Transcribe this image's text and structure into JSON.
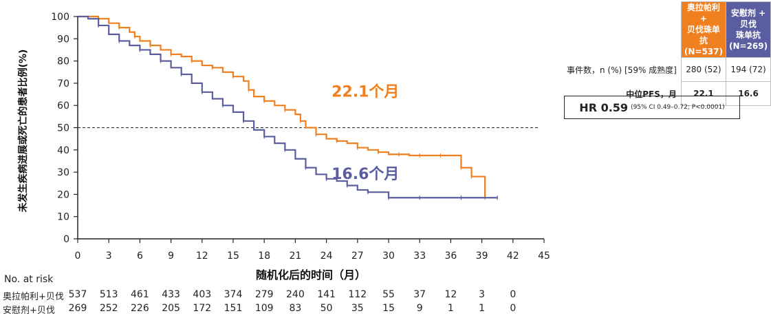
{
  "chart_data": {
    "type": "line",
    "xlabel": "随机化后的时间（月）",
    "ylabel": "未发生疾病进展或死亡的患者比例(%)",
    "xlim": [
      0,
      45
    ],
    "ylim": [
      0,
      100
    ],
    "x_ticks": [
      0,
      3,
      6,
      9,
      12,
      15,
      18,
      21,
      24,
      27,
      30,
      33,
      36,
      39,
      42,
      45
    ],
    "y_ticks": [
      0,
      10,
      20,
      30,
      40,
      50,
      60,
      70,
      80,
      90,
      100
    ],
    "reference_line": {
      "y": 50,
      "style": "dashed"
    },
    "series": [
      {
        "name": "奥拉帕利+贝伐珠单抗",
        "color": "#f07f1f",
        "x": [
          0,
          1,
          2,
          3,
          4,
          5,
          5.5,
          6,
          7,
          8,
          9,
          10,
          11,
          12,
          13,
          14,
          15,
          16,
          16.5,
          17,
          18,
          19,
          20,
          21,
          21.5,
          22,
          23,
          24,
          25,
          26,
          27,
          28,
          29,
          30,
          31,
          32,
          33,
          34,
          35,
          36,
          37,
          37.5,
          38,
          39,
          39.3
        ],
        "values": [
          100,
          100,
          99,
          97,
          95,
          93,
          91,
          89,
          87,
          85,
          83,
          82,
          80,
          78,
          77,
          75,
          73,
          71,
          67,
          64,
          62,
          60,
          58,
          56,
          53,
          50,
          47,
          45,
          44,
          43,
          41,
          40,
          39,
          38,
          38,
          37.5,
          37.5,
          37.5,
          37.5,
          37.5,
          32,
          32,
          28,
          28,
          18.5
        ]
      },
      {
        "name": "安慰剂+贝伐珠单抗",
        "color": "#5a5d9f",
        "x": [
          0,
          1,
          2,
          3,
          4,
          5,
          6,
          7,
          8,
          9,
          10,
          11,
          12,
          13,
          14,
          15,
          16,
          17,
          18,
          19,
          20,
          21,
          22,
          23,
          24,
          25,
          26,
          27,
          28,
          29,
          30,
          31,
          33,
          35,
          37,
          39,
          40.5
        ],
        "values": [
          100,
          99,
          96,
          92,
          89,
          87,
          85,
          83,
          80,
          77,
          74,
          70,
          66,
          63,
          60,
          57,
          53,
          49,
          46,
          43,
          40,
          36,
          32,
          29,
          27,
          26,
          24,
          22,
          21,
          21,
          18.5,
          18.5,
          18.5,
          18.5,
          18.5,
          18.5,
          18.5
        ]
      }
    ],
    "annotations": [
      {
        "text": "22.1个月",
        "x": 24.5,
        "y": 64,
        "color": "#f07f1f"
      },
      {
        "text": "16.6个月",
        "x": 24.5,
        "y": 27,
        "color": "#5a5d9f"
      }
    ]
  },
  "legend_table": {
    "arm1_header": [
      "奥拉帕利 +",
      "贝伐珠单抗",
      "(N=537)"
    ],
    "arm2_header": [
      "安慰剂 + 贝伐",
      "珠单抗",
      "(N=269)"
    ],
    "events_label": "事件数，n (%) [59% 成熟度]",
    "events_arm1": "280 (52)",
    "events_arm2": "194 (72)",
    "median_label": "中位PFS，月",
    "median_arm1": "22.1",
    "median_arm2": "16.6",
    "hr_main": "HR 0.59",
    "hr_detail": "(95% CI 0.49–0.72; P<0.0001)"
  },
  "risk_table": {
    "title": "No. at risk",
    "arm1_label": "奥拉帕利+贝伐",
    "arm2_label": "安慰剂+贝伐",
    "times": [
      0,
      3,
      6,
      9,
      12,
      15,
      18,
      21,
      24,
      27,
      30,
      33,
      36,
      39,
      42
    ],
    "arm1": [
      "537",
      "513",
      "461",
      "433",
      "403",
      "374",
      "279",
      "240",
      "141",
      "112",
      "55",
      "37",
      "12",
      "3",
      "0"
    ],
    "arm2": [
      "269",
      "252",
      "226",
      "205",
      "172",
      "151",
      "109",
      "83",
      "50",
      "35",
      "15",
      "9",
      "1",
      "1",
      "0"
    ]
  }
}
